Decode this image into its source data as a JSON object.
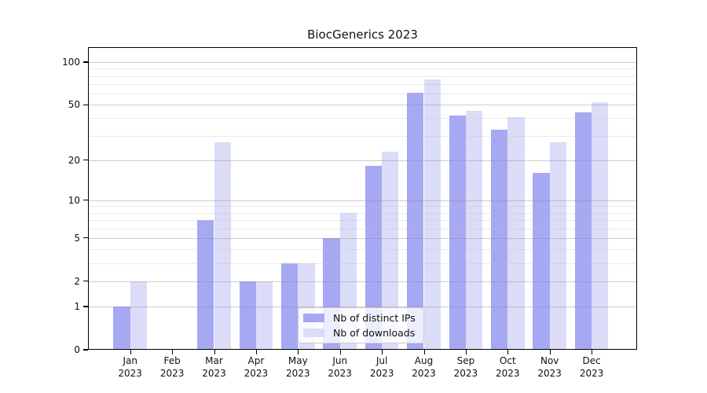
{
  "title": "BiocGenerics 2023",
  "legend": [
    {
      "label": "Nb of distinct IPs",
      "color": "#a7a8f3"
    },
    {
      "label": "Nb of downloads",
      "color": "#dbdcf8"
    }
  ],
  "colors": {
    "distinct_ips_bar": "#a7a8f3",
    "downloads_bar": "#dbdcf8",
    "axis": "#000000",
    "grid_major": "#d0d0d0",
    "grid_minor": "#e8e8e8"
  },
  "chart_data": {
    "type": "bar",
    "title": "BiocGenerics 2023",
    "categories": [
      "Jan",
      "Feb",
      "Mar",
      "Apr",
      "May",
      "Jun",
      "Jul",
      "Aug",
      "Sep",
      "Oct",
      "Nov",
      "Dec"
    ],
    "x_year_label": "2023",
    "series": [
      {
        "name": "Nb of distinct IPs",
        "color": "#a7a8f3",
        "values": [
          1,
          0,
          7,
          2,
          3,
          5,
          18,
          61,
          42,
          33,
          16,
          44
        ]
      },
      {
        "name": "Nb of downloads",
        "color": "#dbdcf8",
        "values": [
          2,
          0,
          27,
          2,
          3,
          8,
          23,
          76,
          45,
          41,
          27,
          52
        ]
      }
    ],
    "xlabel": "",
    "ylabel": "",
    "y_scale": "log1p",
    "ylim": [
      0,
      127
    ],
    "y_ticks_major": [
      0,
      1,
      2,
      5,
      10,
      20,
      50,
      100
    ],
    "y_ticks_minor": [
      3,
      4,
      6,
      7,
      8,
      9,
      30,
      40,
      60,
      70,
      80,
      90
    ],
    "grid": true,
    "legend_position": "lower center"
  }
}
